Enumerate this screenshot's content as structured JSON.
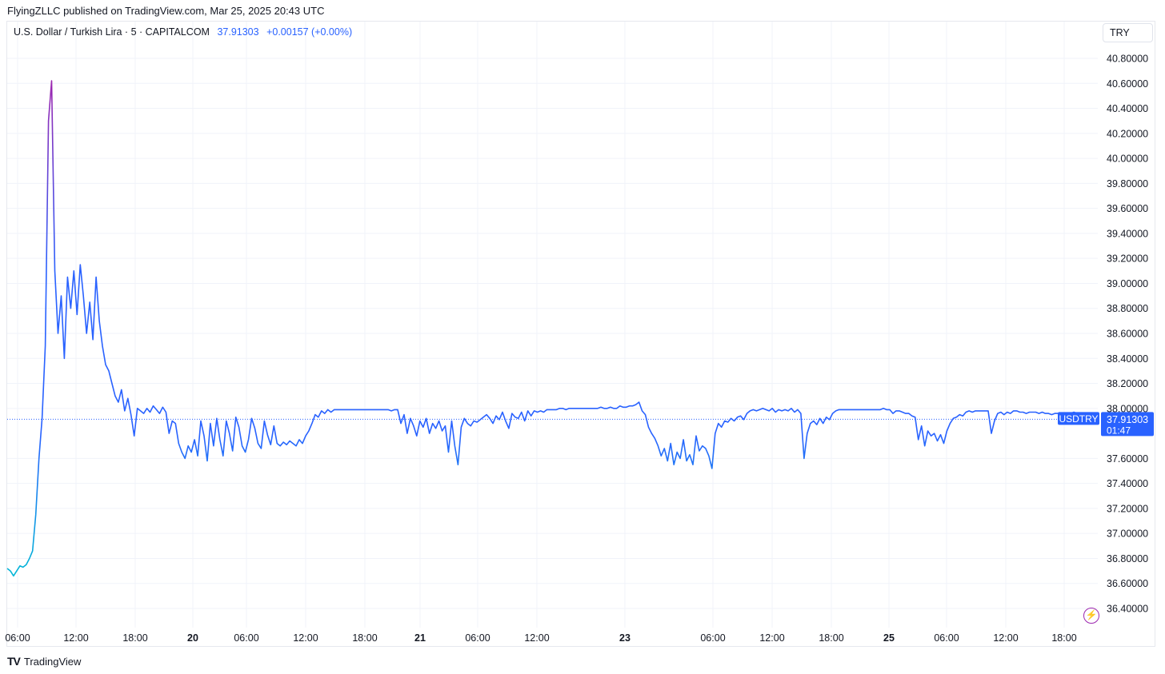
{
  "header": {
    "published_by": "FlyingZLLC published on TradingView.com, Mar 25, 2025 20:43 UTC"
  },
  "legend": {
    "symbol": "U.S. Dollar / Turkish Lira · 5 · CAPITALCOM",
    "last_value": "37.91303",
    "change": "+0.00157 (+0.00%)"
  },
  "currency_selector": {
    "label": "TRY"
  },
  "price_label": {
    "ticker": "USDTRY",
    "price": "37.91303",
    "countdown": "01:47"
  },
  "footer": {
    "brand": "TradingView"
  },
  "icons": {
    "logo": "tradingview-logo-icon",
    "flash": "lightning-icon"
  },
  "colors": {
    "line": "#2962ff",
    "spike_top": "#9c27b0",
    "spike_bottom": "#00bcd4",
    "price_tag": "#2962ff",
    "grid": "#f0f3fa"
  },
  "chart_data": {
    "type": "line",
    "title": "",
    "xlabel": "",
    "ylabel": "",
    "ylim": [
      36.3,
      40.95
    ],
    "y_ticks": [
      "40.80000",
      "40.60000",
      "40.40000",
      "40.20000",
      "40.00000",
      "39.80000",
      "39.60000",
      "39.40000",
      "39.20000",
      "39.00000",
      "38.80000",
      "38.60000",
      "38.40000",
      "38.20000",
      "38.00000",
      "37.60000",
      "37.40000",
      "37.20000",
      "37.00000",
      "36.80000",
      "36.60000",
      "36.40000"
    ],
    "x_ticks": [
      {
        "label": "06:00",
        "bold": false
      },
      {
        "label": "12:00",
        "bold": false
      },
      {
        "label": "18:00",
        "bold": false
      },
      {
        "label": "20",
        "bold": true
      },
      {
        "label": "06:00",
        "bold": false
      },
      {
        "label": "12:00",
        "bold": false
      },
      {
        "label": "18:00",
        "bold": false
      },
      {
        "label": "21",
        "bold": true
      },
      {
        "label": "06:00",
        "bold": false
      },
      {
        "label": "12:00",
        "bold": false
      },
      {
        "label": "23",
        "bold": true
      },
      {
        "label": "06:00",
        "bold": false
      },
      {
        "label": "12:00",
        "bold": false
      },
      {
        "label": "18:00",
        "bold": false
      },
      {
        "label": "25",
        "bold": true
      },
      {
        "label": "06:00",
        "bold": false
      },
      {
        "label": "12:00",
        "bold": false
      },
      {
        "label": "18:00",
        "bold": false
      }
    ],
    "last_price": 37.91303,
    "series": [
      {
        "values": [
          36.72,
          36.7,
          36.66,
          36.7,
          36.74,
          36.73,
          36.75,
          36.8,
          36.86,
          37.15,
          37.6,
          37.92,
          38.5,
          40.3,
          40.62,
          39.1,
          38.6,
          38.9,
          38.4,
          39.05,
          38.8,
          39.1,
          38.75,
          39.15,
          38.9,
          38.6,
          38.85,
          38.55,
          39.05,
          38.7,
          38.5,
          38.35,
          38.3,
          38.2,
          38.1,
          38.05,
          38.15,
          37.98,
          38.08,
          37.95,
          37.78,
          38.0,
          37.98,
          37.96,
          38.0,
          37.97,
          38.02,
          37.99,
          37.96,
          38.01,
          37.97,
          37.8,
          37.9,
          37.88,
          37.72,
          37.65,
          37.6,
          37.7,
          37.65,
          37.75,
          37.62,
          37.9,
          37.78,
          37.58,
          37.88,
          37.7,
          37.92,
          37.75,
          37.62,
          37.9,
          37.8,
          37.66,
          37.93,
          37.85,
          37.7,
          37.65,
          37.75,
          37.92,
          37.84,
          37.72,
          37.68,
          37.9,
          37.79,
          37.71,
          37.86,
          37.72,
          37.7,
          37.73,
          37.71,
          37.74,
          37.72,
          37.7,
          37.75,
          37.72,
          37.78,
          37.82,
          37.88,
          37.95,
          37.93,
          37.98,
          37.96,
          37.99,
          37.97,
          37.99,
          37.99,
          37.99,
          37.99,
          37.99,
          37.99,
          37.99,
          37.99,
          37.99,
          37.99,
          37.99,
          37.99,
          37.99,
          37.99,
          37.99,
          37.99,
          37.99,
          37.99,
          37.98,
          37.99,
          37.99,
          37.88,
          37.95,
          37.8,
          37.92,
          37.86,
          37.78,
          37.9,
          37.85,
          37.92,
          37.8,
          37.88,
          37.84,
          37.9,
          37.82,
          37.86,
          37.65,
          37.9,
          37.7,
          37.55,
          37.85,
          37.92,
          37.88,
          37.86,
          37.9,
          37.89,
          37.91,
          37.93,
          37.95,
          37.92,
          37.88,
          37.94,
          37.91,
          37.97,
          37.9,
          37.84,
          37.96,
          37.93,
          37.92,
          37.97,
          37.9,
          37.98,
          37.94,
          37.98,
          37.97,
          37.98,
          37.97,
          37.99,
          37.99,
          37.99,
          37.99,
          38.0,
          38.0,
          37.99,
          38.0,
          38.0,
          38.0,
          38.0,
          38.0,
          38.0,
          38.0,
          38.0,
          38.0,
          38.0,
          38.01,
          38.0,
          38.0,
          38.01,
          38.0,
          38.0,
          38.02,
          38.01,
          38.01,
          38.02,
          38.02,
          38.03,
          38.05,
          37.98,
          37.95,
          37.85,
          37.8,
          37.76,
          37.7,
          37.62,
          37.68,
          37.58,
          37.72,
          37.55,
          37.65,
          37.6,
          37.75,
          37.58,
          37.63,
          37.55,
          37.78,
          37.66,
          37.7,
          37.68,
          37.62,
          37.52,
          37.8,
          37.88,
          37.85,
          37.9,
          37.89,
          37.92,
          37.9,
          37.93,
          37.94,
          37.91,
          37.96,
          37.98,
          37.99,
          37.98,
          37.99,
          38.0,
          37.99,
          37.98,
          38.0,
          37.97,
          37.99,
          37.98,
          37.99,
          37.98,
          38.0,
          37.97,
          37.99,
          37.96,
          37.6,
          37.8,
          37.88,
          37.9,
          37.87,
          37.92,
          37.88,
          37.93,
          37.91,
          37.96,
          37.98,
          37.99,
          37.99,
          37.99,
          37.99,
          37.99,
          37.99,
          37.99,
          37.99,
          37.99,
          37.99,
          37.99,
          37.99,
          37.99,
          37.99,
          38.0,
          37.99,
          37.99,
          37.96,
          37.98,
          37.98,
          37.97,
          37.96,
          37.96,
          37.94,
          37.93,
          37.75,
          37.86,
          37.7,
          37.82,
          37.78,
          37.8,
          37.74,
          37.79,
          37.72,
          37.82,
          37.88,
          37.92,
          37.93,
          37.95,
          37.94,
          37.97,
          37.98,
          37.97,
          37.98,
          37.98,
          37.98,
          37.98,
          37.98,
          37.8,
          37.9,
          37.96,
          37.97,
          37.95,
          37.97,
          37.96,
          37.98,
          37.98,
          37.97,
          37.97,
          37.96,
          37.97,
          37.97,
          37.97,
          37.96,
          37.97,
          37.96,
          37.96,
          37.95,
          37.96,
          37.96,
          37.96,
          37.96,
          37.96,
          37.96,
          37.97,
          37.96,
          37.95,
          37.92,
          37.91
        ]
      }
    ]
  }
}
